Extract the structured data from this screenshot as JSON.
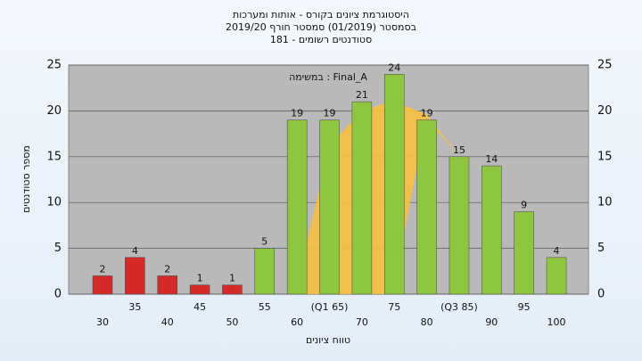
{
  "chart_data": {
    "type": "bar",
    "title": "היסטוגרמת ציונים בקורס - אותות ומערכות",
    "subtitle_lines": [
      "בסמסטר  (01/2019)  סמסטר חורף 2019/20",
      "סטודנטים רשומים - 181"
    ],
    "annotation": "במשימה : Final_A",
    "y_label": "מספר סטודנטים",
    "x_label": "טווח ציונים",
    "categories": [
      "30",
      "35",
      "40",
      "45",
      "50",
      "55",
      "60",
      "(Q1 65)",
      "70",
      "75",
      "80",
      "(Q3 85)",
      "90",
      "95",
      "100"
    ],
    "values": [
      2,
      4,
      2,
      1,
      1,
      5,
      19,
      19,
      21,
      24,
      19,
      15,
      14,
      9,
      4
    ],
    "bar_colors": [
      "#d42a2a",
      "#d42a2a",
      "#d42a2a",
      "#d42a2a",
      "#d42a2a",
      "#8fc641",
      "#8fc641",
      "#8fc641",
      "#8fc641",
      "#8fc641",
      "#8fc641",
      "#8fc641",
      "#8fc641",
      "#8fc641",
      "#8fc641"
    ],
    "ylim": [
      0,
      25
    ],
    "yticks": [
      0,
      5,
      10,
      15,
      20,
      25
    ],
    "grid": true
  }
}
